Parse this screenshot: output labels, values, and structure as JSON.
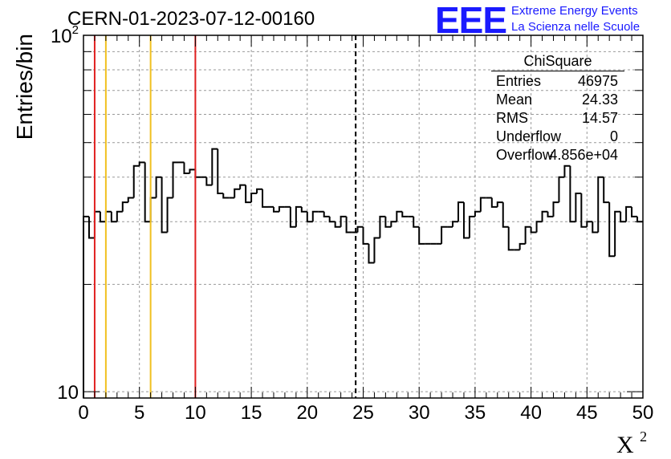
{
  "header": {
    "run_title": "CERN-01-2023-07-12-00160"
  },
  "logo": {
    "mark": "EEE",
    "line1": "Extreme Energy Events",
    "line2": "La Scienza nelle Scuole",
    "color": "#1a1aff"
  },
  "stats_box": {
    "title": "ChiSquare",
    "rows": [
      {
        "label": "Entries",
        "value": "46975"
      },
      {
        "label": "Mean",
        "value": "24.33"
      },
      {
        "label": "RMS",
        "value": "14.57"
      },
      {
        "label": "Underflow",
        "value": "0"
      },
      {
        "label": "Overflow",
        "value": "4.856e+04"
      }
    ]
  },
  "chart_data": {
    "type": "histogram",
    "ylabel": "Entries/bin",
    "xlabel": "X",
    "xlabel_superscript": "2",
    "xlim": [
      0,
      50
    ],
    "ylim": [
      9.6,
      100
    ],
    "yscale": "log",
    "grid": true,
    "bin_width": 0.5,
    "x_ticks": [
      "0",
      "5",
      "10",
      "15",
      "20",
      "25",
      "30",
      "35",
      "40",
      "45",
      "50"
    ],
    "y_ticks": [
      {
        "value": 10,
        "base": "10",
        "exp": ""
      },
      {
        "value": 100,
        "base": "10",
        "exp": "2"
      }
    ],
    "values": [
      31,
      27,
      32,
      30,
      32,
      30,
      32,
      34,
      35,
      43,
      44,
      30,
      35,
      40,
      28,
      35,
      44,
      44,
      41,
      42,
      40,
      40,
      38,
      48,
      36,
      35,
      35,
      37,
      38,
      34,
      36,
      37,
      33,
      33,
      32,
      33,
      33,
      29,
      33,
      32,
      30,
      32,
      32,
      31,
      30,
      29,
      31,
      28,
      28,
      29,
      26,
      23,
      27,
      31,
      29,
      30,
      32,
      31,
      31,
      29,
      26,
      26,
      26,
      26,
      29,
      29,
      30,
      34,
      27,
      31,
      32,
      35,
      35,
      33,
      34,
      29,
      25,
      25,
      26,
      29,
      28,
      30,
      32,
      31,
      34,
      40,
      43,
      30,
      36,
      29,
      30,
      28,
      40,
      34,
      24,
      32,
      30,
      33,
      31,
      30
    ],
    "vertical_lines": [
      {
        "x": 1,
        "color": "#e02020",
        "style": "solid"
      },
      {
        "x": 2,
        "color": "#f0c020",
        "style": "solid"
      },
      {
        "x": 6,
        "color": "#f0c020",
        "style": "solid"
      },
      {
        "x": 10,
        "color": "#e02020",
        "style": "solid"
      },
      {
        "x": 24.33,
        "color": "#000000",
        "style": "dashed"
      }
    ]
  }
}
